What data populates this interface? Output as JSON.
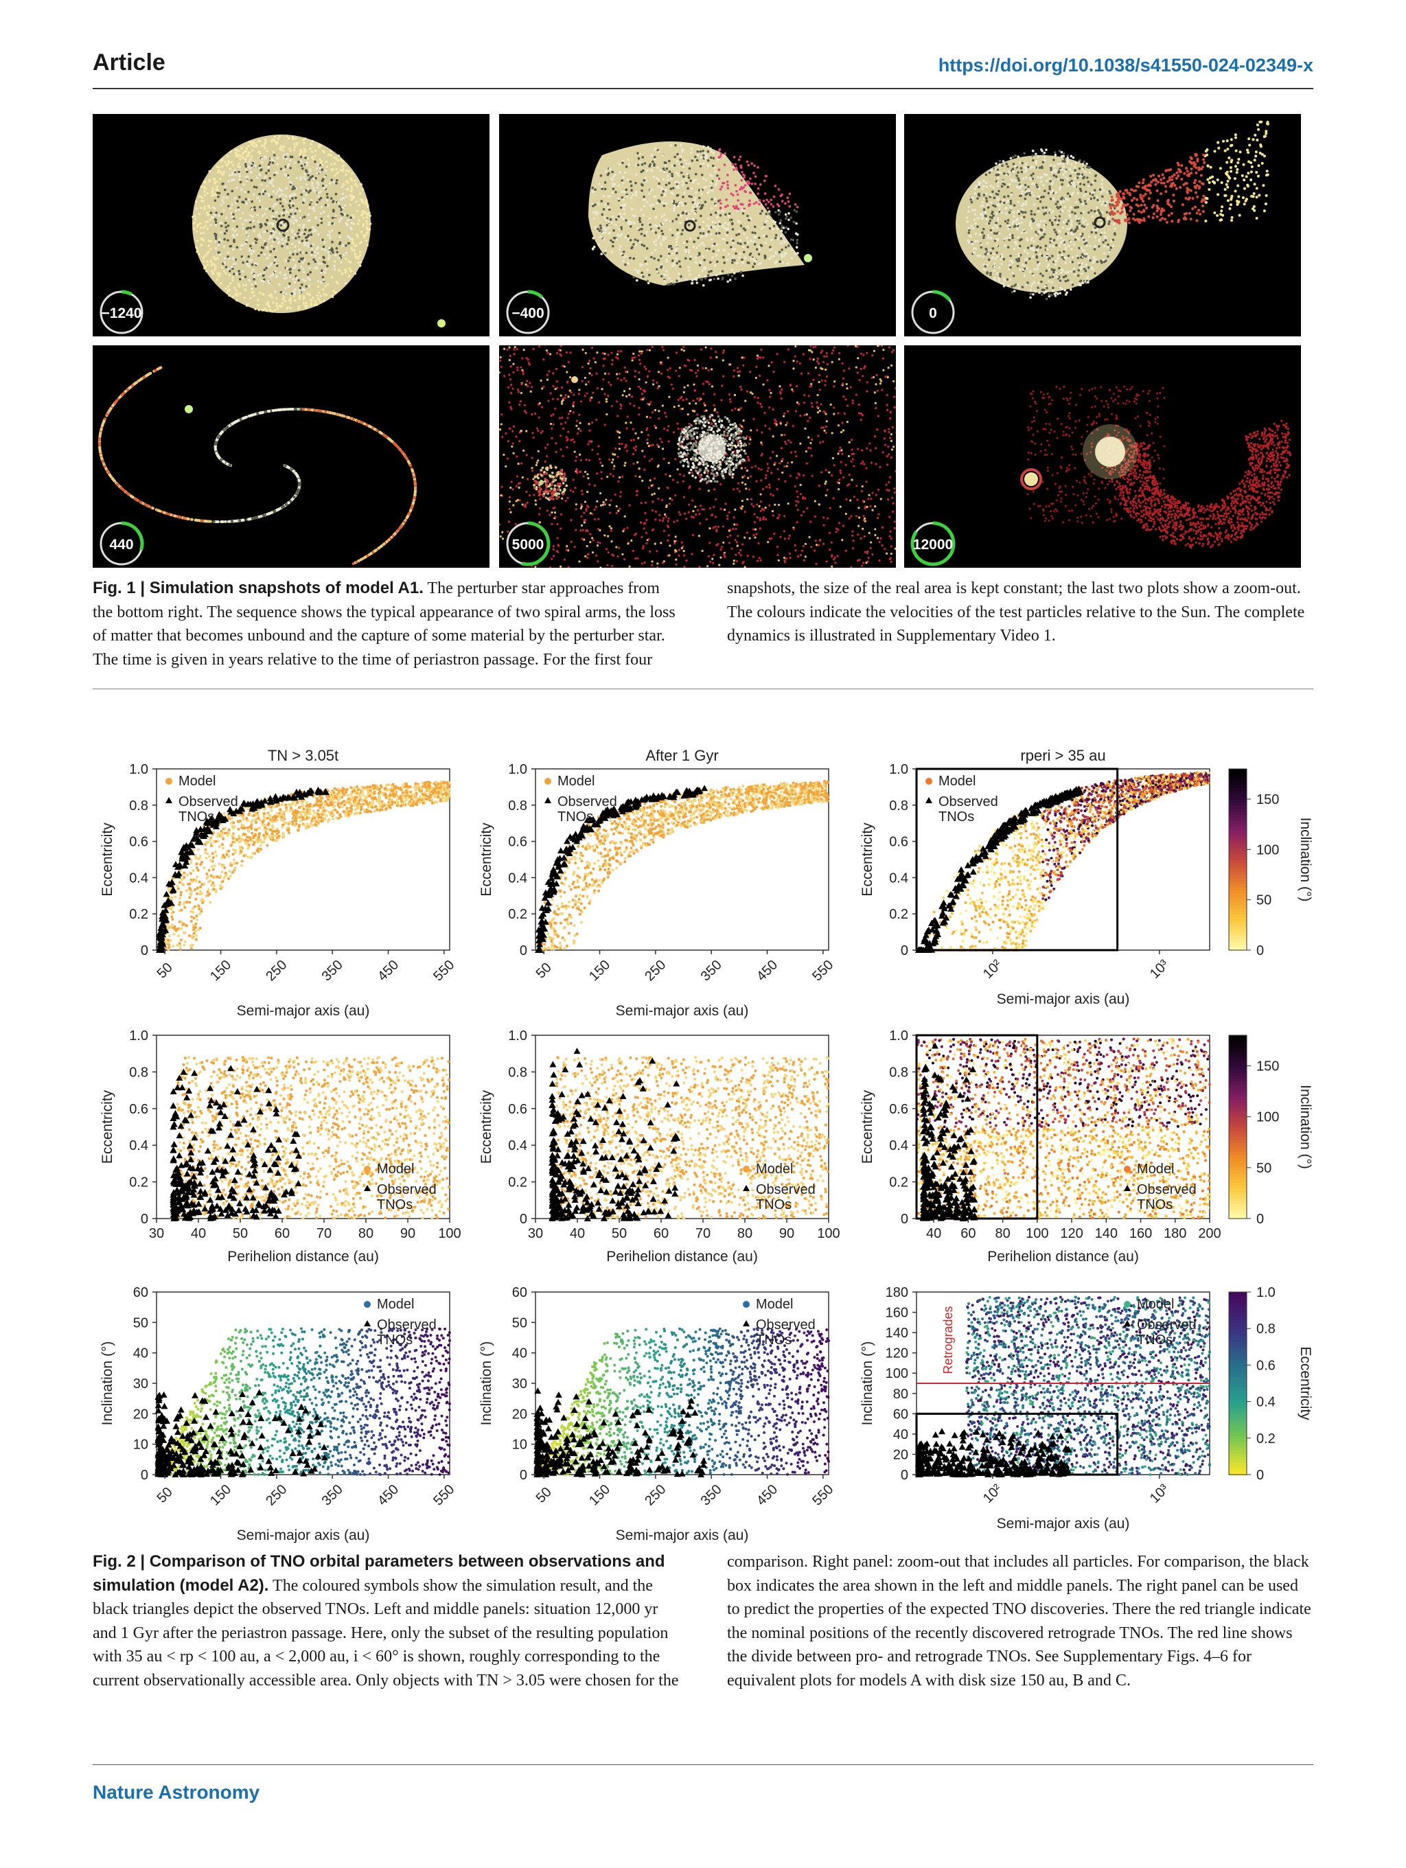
{
  "header": {
    "left": "Article",
    "right": "https://doi.org/10.1038/s41550-024-02349-x"
  },
  "fig1": {
    "snapshots": [
      {
        "time_label": "−1240",
        "progress": 0.08
      },
      {
        "time_label": "−400",
        "progress": 0.12
      },
      {
        "time_label": "0",
        "progress": 0.15
      },
      {
        "time_label": "440",
        "progress": 0.3
      },
      {
        "time_label": "5000",
        "progress": 0.55
      },
      {
        "time_label": "12000",
        "progress": 0.85
      }
    ],
    "caption_title": "Fig. 1 | Simulation snapshots of model A1.",
    "caption_body": " The perturber star approaches from the bottom right. The sequence shows the typical appearance of two spiral arms, the loss of matter that becomes unbound and the capture of some material by the perturber star. The time is given in years relative to the time of periastron passage. For the first four snapshots, the size of the real area is kept constant; the last two plots show a zoom-out. The colours indicate the velocities of the test particles relative to the Sun. The complete dynamics is illustrated in Supplementary Video 1."
  },
  "fig2": {
    "caption_title": "Fig. 2 | Comparison of TNO orbital parameters between observations and simulation (model A2).",
    "caption_body": " The coloured symbols show the simulation result, and the black triangles depict the observed TNOs. Left and middle panels: situation 12,000 yr and 1 Gyr after the periastron passage. Here, only the subset of the resulting population with 35 au < rp < 100 au, a < 2,000 au, i < 60° is shown, roughly corresponding to the current observationally accessible area. Only objects with TN > 3.05 were chosen for the comparison. Right panel: zoom-out that includes all particles. For comparison, the black box indicates the area shown in the left and middle panels. The right panel can be used to predict the properties of the expected TNO discoveries. There the red triangle indicate the nominal positions of the recently discovered retrograde TNOs. The red line shows the divide between pro- and retrograde TNOs. See Supplementary Figs. 4–6 for equivalent plots for models A with disk size 150 au, B and C.",
    "column_titles": [
      "TN > 3.05t",
      "After 1 Gyr",
      "rperi > 35 au"
    ],
    "legend": {
      "model": "Model",
      "observed": "Observed TNOs"
    },
    "row1": {
      "ylabel": "Eccentricity",
      "xlabel": "Semi-major axis (au)",
      "yticks": [
        "0",
        "0.2",
        "0.4",
        "0.6",
        "0.8",
        "1.0"
      ],
      "xticks_lin": [
        "50",
        "150",
        "250",
        "350",
        "450",
        "550"
      ],
      "xticks_log": [
        "10²",
        "10³"
      ]
    },
    "row2": {
      "ylabel": "Eccentricity",
      "xlabel": "Perihelion distance (au)",
      "yticks": [
        "0",
        "0.2",
        "0.4",
        "0.6",
        "0.8",
        "1.0"
      ],
      "xticks_a": [
        "30",
        "40",
        "50",
        "60",
        "70",
        "80",
        "90",
        "100"
      ],
      "xticks_c": [
        "40",
        "60",
        "80",
        "100",
        "120",
        "140",
        "160",
        "180",
        "200"
      ]
    },
    "row3": {
      "ylabel": "Inclination (°)",
      "xlabel": "Semi-major axis (au)",
      "yticks_a": [
        "0",
        "10",
        "20",
        "30",
        "40",
        "50",
        "60"
      ],
      "yticks_c": [
        "0",
        "20",
        "40",
        "60",
        "80",
        "100",
        "120",
        "140",
        "160",
        "180"
      ],
      "retrogrades": "Retrogrades"
    },
    "colorbar_incl": {
      "label": "Inclination (°)",
      "ticks": [
        "0",
        "50",
        "100",
        "150"
      ]
    },
    "colorbar_ecc": {
      "label": "Eccentricity",
      "ticks": [
        "0",
        "0.2",
        "0.4",
        "0.6",
        "0.8",
        "1.0"
      ]
    }
  },
  "footer": "Nature Astronomy",
  "colors": {
    "accent": "#1a6fae",
    "model_orange": "#f2a33a",
    "retro_red": "#d62728",
    "model_blue": "#2c6fa5"
  }
}
